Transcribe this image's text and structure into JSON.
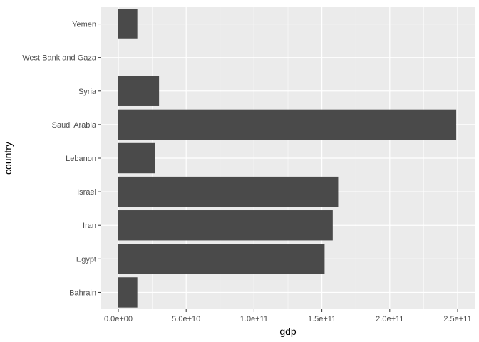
{
  "chart_data": {
    "type": "bar",
    "orientation": "horizontal",
    "title": "",
    "xlabel": "gdp",
    "ylabel": "country",
    "categories": [
      "Bahrain",
      "Egypt",
      "Iran",
      "Israel",
      "Lebanon",
      "Saudi Arabia",
      "Syria",
      "West Bank and Gaza",
      "Yemen"
    ],
    "values": [
      14000000000,
      152000000000,
      158000000000,
      162000000000,
      27000000000,
      249000000000,
      30000000000,
      null,
      14000000000
    ],
    "xlim": [
      0,
      250000000000
    ],
    "x_ticks": [
      0,
      50000000000,
      100000000000,
      150000000000,
      200000000000,
      250000000000
    ],
    "x_tick_labels": [
      "0.0e+00",
      "5.0e+10",
      "1.0e+11",
      "1.5e+11",
      "2.0e+11",
      "2.5e+11"
    ],
    "grid": true,
    "colors": {
      "panel_background": "#ebebeb",
      "grid_major": "#ffffff",
      "bar_fill": "#4a4a4a",
      "tick_mark": "#333333"
    }
  }
}
